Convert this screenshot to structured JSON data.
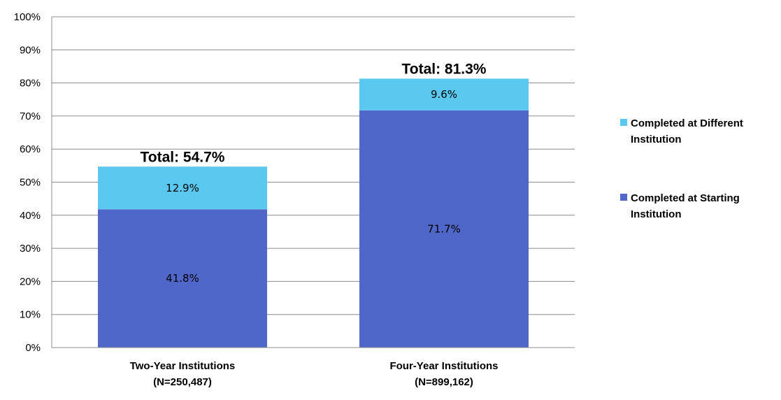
{
  "chart_data": {
    "type": "bar",
    "stacked": true,
    "categories": [
      [
        "Two-Year Institutions",
        "(N=250,487)"
      ],
      [
        "Four-Year Institutions",
        "(N=899,162)"
      ]
    ],
    "series": [
      {
        "name": "Completed at Starting Institution",
        "legend_lines": [
          "Completed at Starting",
          "Institution"
        ],
        "color": "#4F67C8",
        "values": [
          41.8,
          71.7
        ],
        "labels": [
          "41.8%",
          "71.7%"
        ]
      },
      {
        "name": "Completed at Different Institution",
        "legend_lines": [
          "Completed at Different",
          "Institution"
        ],
        "color": "#5BC8F0",
        "values": [
          12.9,
          9.6
        ],
        "labels": [
          "12.9%",
          "9.6%"
        ]
      }
    ],
    "totals": [
      "Total: 54.7%",
      "Total: 81.3%"
    ],
    "ylim": [
      0,
      100
    ],
    "yticks": [
      "0%",
      "10%",
      "20%",
      "30%",
      "40%",
      "50%",
      "60%",
      "70%",
      "80%",
      "90%",
      "100%"
    ],
    "grid": true,
    "legend_position": "right",
    "gridline_color": "#8C8C8C"
  }
}
